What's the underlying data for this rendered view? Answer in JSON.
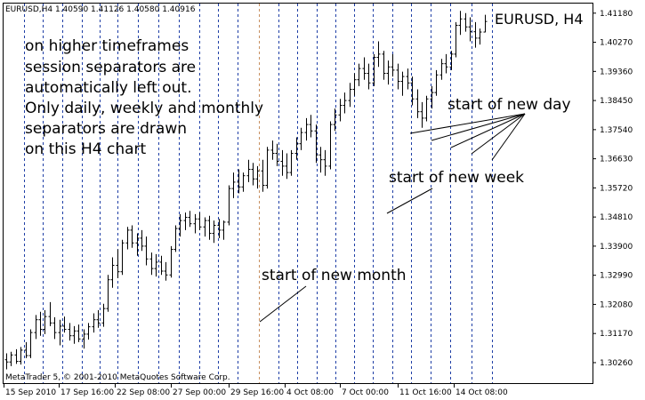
{
  "header": {
    "symbol_info": "EURUSD,H4  1.40590 1.41126 1.40580 1.40916",
    "big_symbol": "EURUSD, H4"
  },
  "footer": {
    "copyright": "MetaTrader 5, © 2001-2010 MetaQuotes Software Corp."
  },
  "annotations": {
    "main_text": [
      "on higher timeframes",
      "session separators are",
      "automatically left out.",
      "Only daily, weekly and monthly",
      "separators are drawn",
      "on this H4 chart"
    ],
    "day_label": "start of new day",
    "week_label": "start of new week",
    "month_label": "start of new month"
  },
  "colors": {
    "background": "#ffffff",
    "grid": "#000000",
    "day_separator": "#1f3fa6",
    "month_separator": "#c89060",
    "candle": "#000000"
  },
  "chart_data": {
    "type": "ohlc",
    "title": "EURUSD, H4",
    "price_axis_labels": [
      "1.41180",
      "1.40270",
      "1.39360",
      "1.38450",
      "1.37540",
      "1.36630",
      "1.35720",
      "1.34810",
      "1.33900",
      "1.32990",
      "1.32080",
      "1.31170",
      "1.30260"
    ],
    "ylim": [
      1.2962,
      1.4148
    ],
    "time_axis_labels": [
      "15 Sep 2010",
      "17 Sep 16:00",
      "22 Sep 08:00",
      "27 Sep 00:00",
      "29 Sep 16:00",
      "4 Oct 08:00",
      "7 Oct 00:00",
      "11 Oct 16:00",
      "14 Oct 08:00"
    ],
    "last_price": 1.40916,
    "grid": "none",
    "separators": "daily, weekly and monthly (dashed vertical lines)",
    "bars": [
      [
        1.3035,
        1.3055,
        1.3005,
        1.3028
      ],
      [
        1.3028,
        1.306,
        1.3015,
        1.305
      ],
      [
        1.305,
        1.3068,
        1.3022,
        1.303
      ],
      [
        1.303,
        1.3075,
        1.302,
        1.3065
      ],
      [
        1.3065,
        1.309,
        1.304,
        1.3048
      ],
      [
        1.3048,
        1.313,
        1.304,
        1.312
      ],
      [
        1.312,
        1.3175,
        1.31,
        1.316
      ],
      [
        1.316,
        1.3185,
        1.311,
        1.313
      ],
      [
        1.313,
        1.319,
        1.3115,
        1.317
      ],
      [
        1.317,
        1.3215,
        1.314,
        1.315
      ],
      [
        1.315,
        1.3168,
        1.31,
        1.312
      ],
      [
        1.312,
        1.316,
        1.308,
        1.314
      ],
      [
        1.314,
        1.317,
        1.312,
        1.313
      ],
      [
        1.313,
        1.315,
        1.3095,
        1.311
      ],
      [
        1.311,
        1.314,
        1.3085,
        1.3125
      ],
      [
        1.3125,
        1.3145,
        1.309,
        1.31
      ],
      [
        1.31,
        1.313,
        1.307,
        1.3115
      ],
      [
        1.3115,
        1.315,
        1.3098,
        1.3138
      ],
      [
        1.3138,
        1.318,
        1.312,
        1.316
      ],
      [
        1.316,
        1.319,
        1.3135,
        1.315
      ],
      [
        1.315,
        1.321,
        1.3138,
        1.3195
      ],
      [
        1.3195,
        1.33,
        1.3185,
        1.3285
      ],
      [
        1.3285,
        1.3355,
        1.326,
        1.333
      ],
      [
        1.333,
        1.338,
        1.329,
        1.331
      ],
      [
        1.331,
        1.341,
        1.33,
        1.34
      ],
      [
        1.34,
        1.345,
        1.338,
        1.344
      ],
      [
        1.344,
        1.3455,
        1.3385,
        1.34
      ],
      [
        1.34,
        1.343,
        1.336,
        1.3415
      ],
      [
        1.3415,
        1.344,
        1.3375,
        1.339
      ],
      [
        1.339,
        1.342,
        1.333,
        1.335
      ],
      [
        1.335,
        1.337,
        1.33,
        1.332
      ],
      [
        1.332,
        1.3365,
        1.3295,
        1.334
      ],
      [
        1.334,
        1.336,
        1.33,
        1.3312
      ],
      [
        1.3312,
        1.334,
        1.3282,
        1.33
      ],
      [
        1.33,
        1.339,
        1.3292,
        1.338
      ],
      [
        1.338,
        1.3455,
        1.3372,
        1.3445
      ],
      [
        1.3445,
        1.349,
        1.342,
        1.347
      ],
      [
        1.347,
        1.3495,
        1.344,
        1.348
      ],
      [
        1.348,
        1.35,
        1.345,
        1.346
      ],
      [
        1.346,
        1.349,
        1.343,
        1.3475
      ],
      [
        1.3475,
        1.3495,
        1.344,
        1.345
      ],
      [
        1.345,
        1.348,
        1.342,
        1.347
      ],
      [
        1.347,
        1.3485,
        1.341,
        1.343
      ],
      [
        1.343,
        1.347,
        1.34,
        1.3455
      ],
      [
        1.3455,
        1.3475,
        1.3415,
        1.344
      ],
      [
        1.344,
        1.347,
        1.341,
        1.3465
      ],
      [
        1.3465,
        1.358,
        1.3455,
        1.357
      ],
      [
        1.357,
        1.362,
        1.354,
        1.359
      ],
      [
        1.359,
        1.363,
        1.3555,
        1.3575
      ],
      [
        1.3575,
        1.362,
        1.356,
        1.361
      ],
      [
        1.361,
        1.366,
        1.359,
        1.363
      ],
      [
        1.363,
        1.365,
        1.358,
        1.36
      ],
      [
        1.36,
        1.364,
        1.357,
        1.3625
      ],
      [
        1.3625,
        1.366,
        1.356,
        1.358
      ],
      [
        1.358,
        1.37,
        1.357,
        1.369
      ],
      [
        1.369,
        1.372,
        1.366,
        1.368
      ],
      [
        1.368,
        1.371,
        1.364,
        1.3655
      ],
      [
        1.3655,
        1.369,
        1.361,
        1.364
      ],
      [
        1.364,
        1.368,
        1.36,
        1.362
      ],
      [
        1.362,
        1.369,
        1.361,
        1.368
      ],
      [
        1.368,
        1.373,
        1.366,
        1.371
      ],
      [
        1.371,
        1.376,
        1.369,
        1.3745
      ],
      [
        1.3745,
        1.379,
        1.372,
        1.377
      ],
      [
        1.377,
        1.38,
        1.373,
        1.375
      ],
      [
        1.375,
        1.377,
        1.365,
        1.3675
      ],
      [
        1.3675,
        1.37,
        1.362,
        1.366
      ],
      [
        1.366,
        1.369,
        1.361,
        1.364
      ],
      [
        1.364,
        1.378,
        1.363,
        1.377
      ],
      [
        1.377,
        1.382,
        1.375,
        1.38
      ],
      [
        1.38,
        1.385,
        1.378,
        1.383
      ],
      [
        1.383,
        1.387,
        1.3805,
        1.3845
      ],
      [
        1.3845,
        1.39,
        1.3825,
        1.388
      ],
      [
        1.388,
        1.393,
        1.386,
        1.391
      ],
      [
        1.391,
        1.396,
        1.389,
        1.3945
      ],
      [
        1.3945,
        1.398,
        1.391,
        1.393
      ],
      [
        1.393,
        1.396,
        1.388,
        1.39
      ],
      [
        1.39,
        1.399,
        1.389,
        1.398
      ],
      [
        1.398,
        1.403,
        1.395,
        1.399
      ],
      [
        1.399,
        1.4,
        1.391,
        1.393
      ],
      [
        1.393,
        1.397,
        1.3895,
        1.395
      ],
      [
        1.395,
        1.399,
        1.392,
        1.394
      ],
      [
        1.394,
        1.396,
        1.388,
        1.3905
      ],
      [
        1.3905,
        1.3935,
        1.386,
        1.392
      ],
      [
        1.392,
        1.3945,
        1.388,
        1.39
      ],
      [
        1.39,
        1.392,
        1.383,
        1.385
      ],
      [
        1.385,
        1.388,
        1.379,
        1.381
      ],
      [
        1.381,
        1.384,
        1.376,
        1.379
      ],
      [
        1.379,
        1.386,
        1.378,
        1.385
      ],
      [
        1.385,
        1.389,
        1.382,
        1.387
      ],
      [
        1.387,
        1.394,
        1.386,
        1.3925
      ],
      [
        1.3925,
        1.3975,
        1.391,
        1.396
      ],
      [
        1.396,
        1.399,
        1.393,
        1.395
      ],
      [
        1.395,
        1.4,
        1.394,
        1.399
      ],
      [
        1.399,
        1.409,
        1.398,
        1.408
      ],
      [
        1.408,
        1.4125,
        1.405,
        1.41
      ],
      [
        1.41,
        1.4118,
        1.406,
        1.4075
      ],
      [
        1.4075,
        1.4105,
        1.403,
        1.406
      ],
      [
        1.406,
        1.409,
        1.401,
        1.404
      ],
      [
        1.404,
        1.407,
        1.402,
        1.4059
      ],
      [
        1.4059,
        1.4113,
        1.4058,
        1.4092
      ]
    ]
  }
}
